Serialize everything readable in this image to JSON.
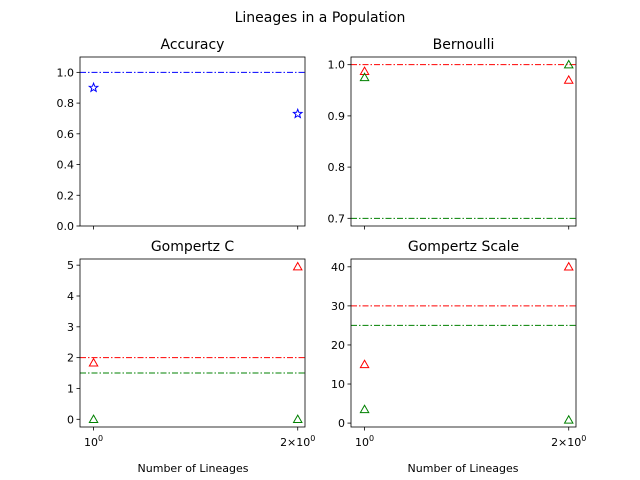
{
  "figure": {
    "suptitle": "Lineages in a Population",
    "xlabel": "Number of Lineages"
  },
  "chart_data": [
    {
      "type": "scatter",
      "title": "Accuracy",
      "x_scale": "log",
      "x_ticks": [
        {
          "value": 1,
          "base": "10",
          "exp": "0"
        },
        {
          "value": 2,
          "mult": "2×",
          "base": "10",
          "exp": "0"
        }
      ],
      "xlim": [
        0.955,
        2.05
      ],
      "ylim": [
        0.0,
        1.1
      ],
      "y_ticks": [
        "0.0",
        "0.2",
        "0.4",
        "0.6",
        "0.8",
        "1.0"
      ],
      "series": [
        {
          "marker": "star",
          "color": "#0000ff",
          "x": [
            1,
            2
          ],
          "y": [
            0.9,
            0.73
          ]
        }
      ],
      "hlines": [
        {
          "y": 1.0,
          "color": "#0000ff"
        }
      ]
    },
    {
      "type": "scatter",
      "title": "Bernoulli",
      "x_scale": "log",
      "x_ticks": [
        {
          "value": 1
        },
        {
          "value": 2
        }
      ],
      "xlim": [
        0.955,
        2.05
      ],
      "ylim": [
        0.685,
        1.015
      ],
      "y_ticks": [
        "0.7",
        "0.8",
        "0.9",
        "1.0"
      ],
      "series": [
        {
          "marker": "triangle",
          "color": "#ff0000",
          "x": [
            1,
            2
          ],
          "y": [
            0.987,
            0.97
          ]
        },
        {
          "marker": "triangle",
          "color": "#008000",
          "x": [
            1,
            2
          ],
          "y": [
            0.975,
            1.0
          ]
        }
      ],
      "hlines": [
        {
          "y": 1.0,
          "color": "#ff0000"
        },
        {
          "y": 0.7,
          "color": "#008000"
        }
      ]
    },
    {
      "type": "scatter",
      "title": "Gompertz C",
      "x_scale": "log",
      "x_ticks": [
        {
          "value": 1,
          "base": "10",
          "exp": "0"
        },
        {
          "value": 2,
          "mult": "2×",
          "base": "10",
          "exp": "0"
        }
      ],
      "xlim": [
        0.955,
        2.05
      ],
      "ylim": [
        -0.25,
        5.2
      ],
      "y_ticks": [
        "0",
        "1",
        "2",
        "3",
        "4",
        "5"
      ],
      "series": [
        {
          "marker": "triangle",
          "color": "#ff0000",
          "x": [
            1,
            2
          ],
          "y": [
            1.83,
            4.95
          ]
        },
        {
          "marker": "triangle",
          "color": "#008000",
          "x": [
            1,
            2
          ],
          "y": [
            0.0,
            0.0
          ]
        }
      ],
      "hlines": [
        {
          "y": 2.0,
          "color": "#ff0000"
        },
        {
          "y": 1.5,
          "color": "#008000"
        }
      ]
    },
    {
      "type": "scatter",
      "title": "Gompertz Scale",
      "x_scale": "log",
      "x_ticks": [
        {
          "value": 1,
          "base": "10",
          "exp": "0"
        },
        {
          "value": 2,
          "mult": "2×",
          "base": "10",
          "exp": "0"
        }
      ],
      "xlim": [
        0.955,
        2.05
      ],
      "ylim": [
        -1.0,
        42.0
      ],
      "y_ticks": [
        "0",
        "10",
        "20",
        "30",
        "40"
      ],
      "series": [
        {
          "marker": "triangle",
          "color": "#ff0000",
          "x": [
            1,
            2
          ],
          "y": [
            15.0,
            40.0
          ]
        },
        {
          "marker": "triangle",
          "color": "#008000",
          "x": [
            1,
            2
          ],
          "y": [
            3.5,
            0.8
          ]
        }
      ],
      "hlines": [
        {
          "y": 30.0,
          "color": "#ff0000"
        },
        {
          "y": 25.0,
          "color": "#008000"
        }
      ]
    }
  ]
}
